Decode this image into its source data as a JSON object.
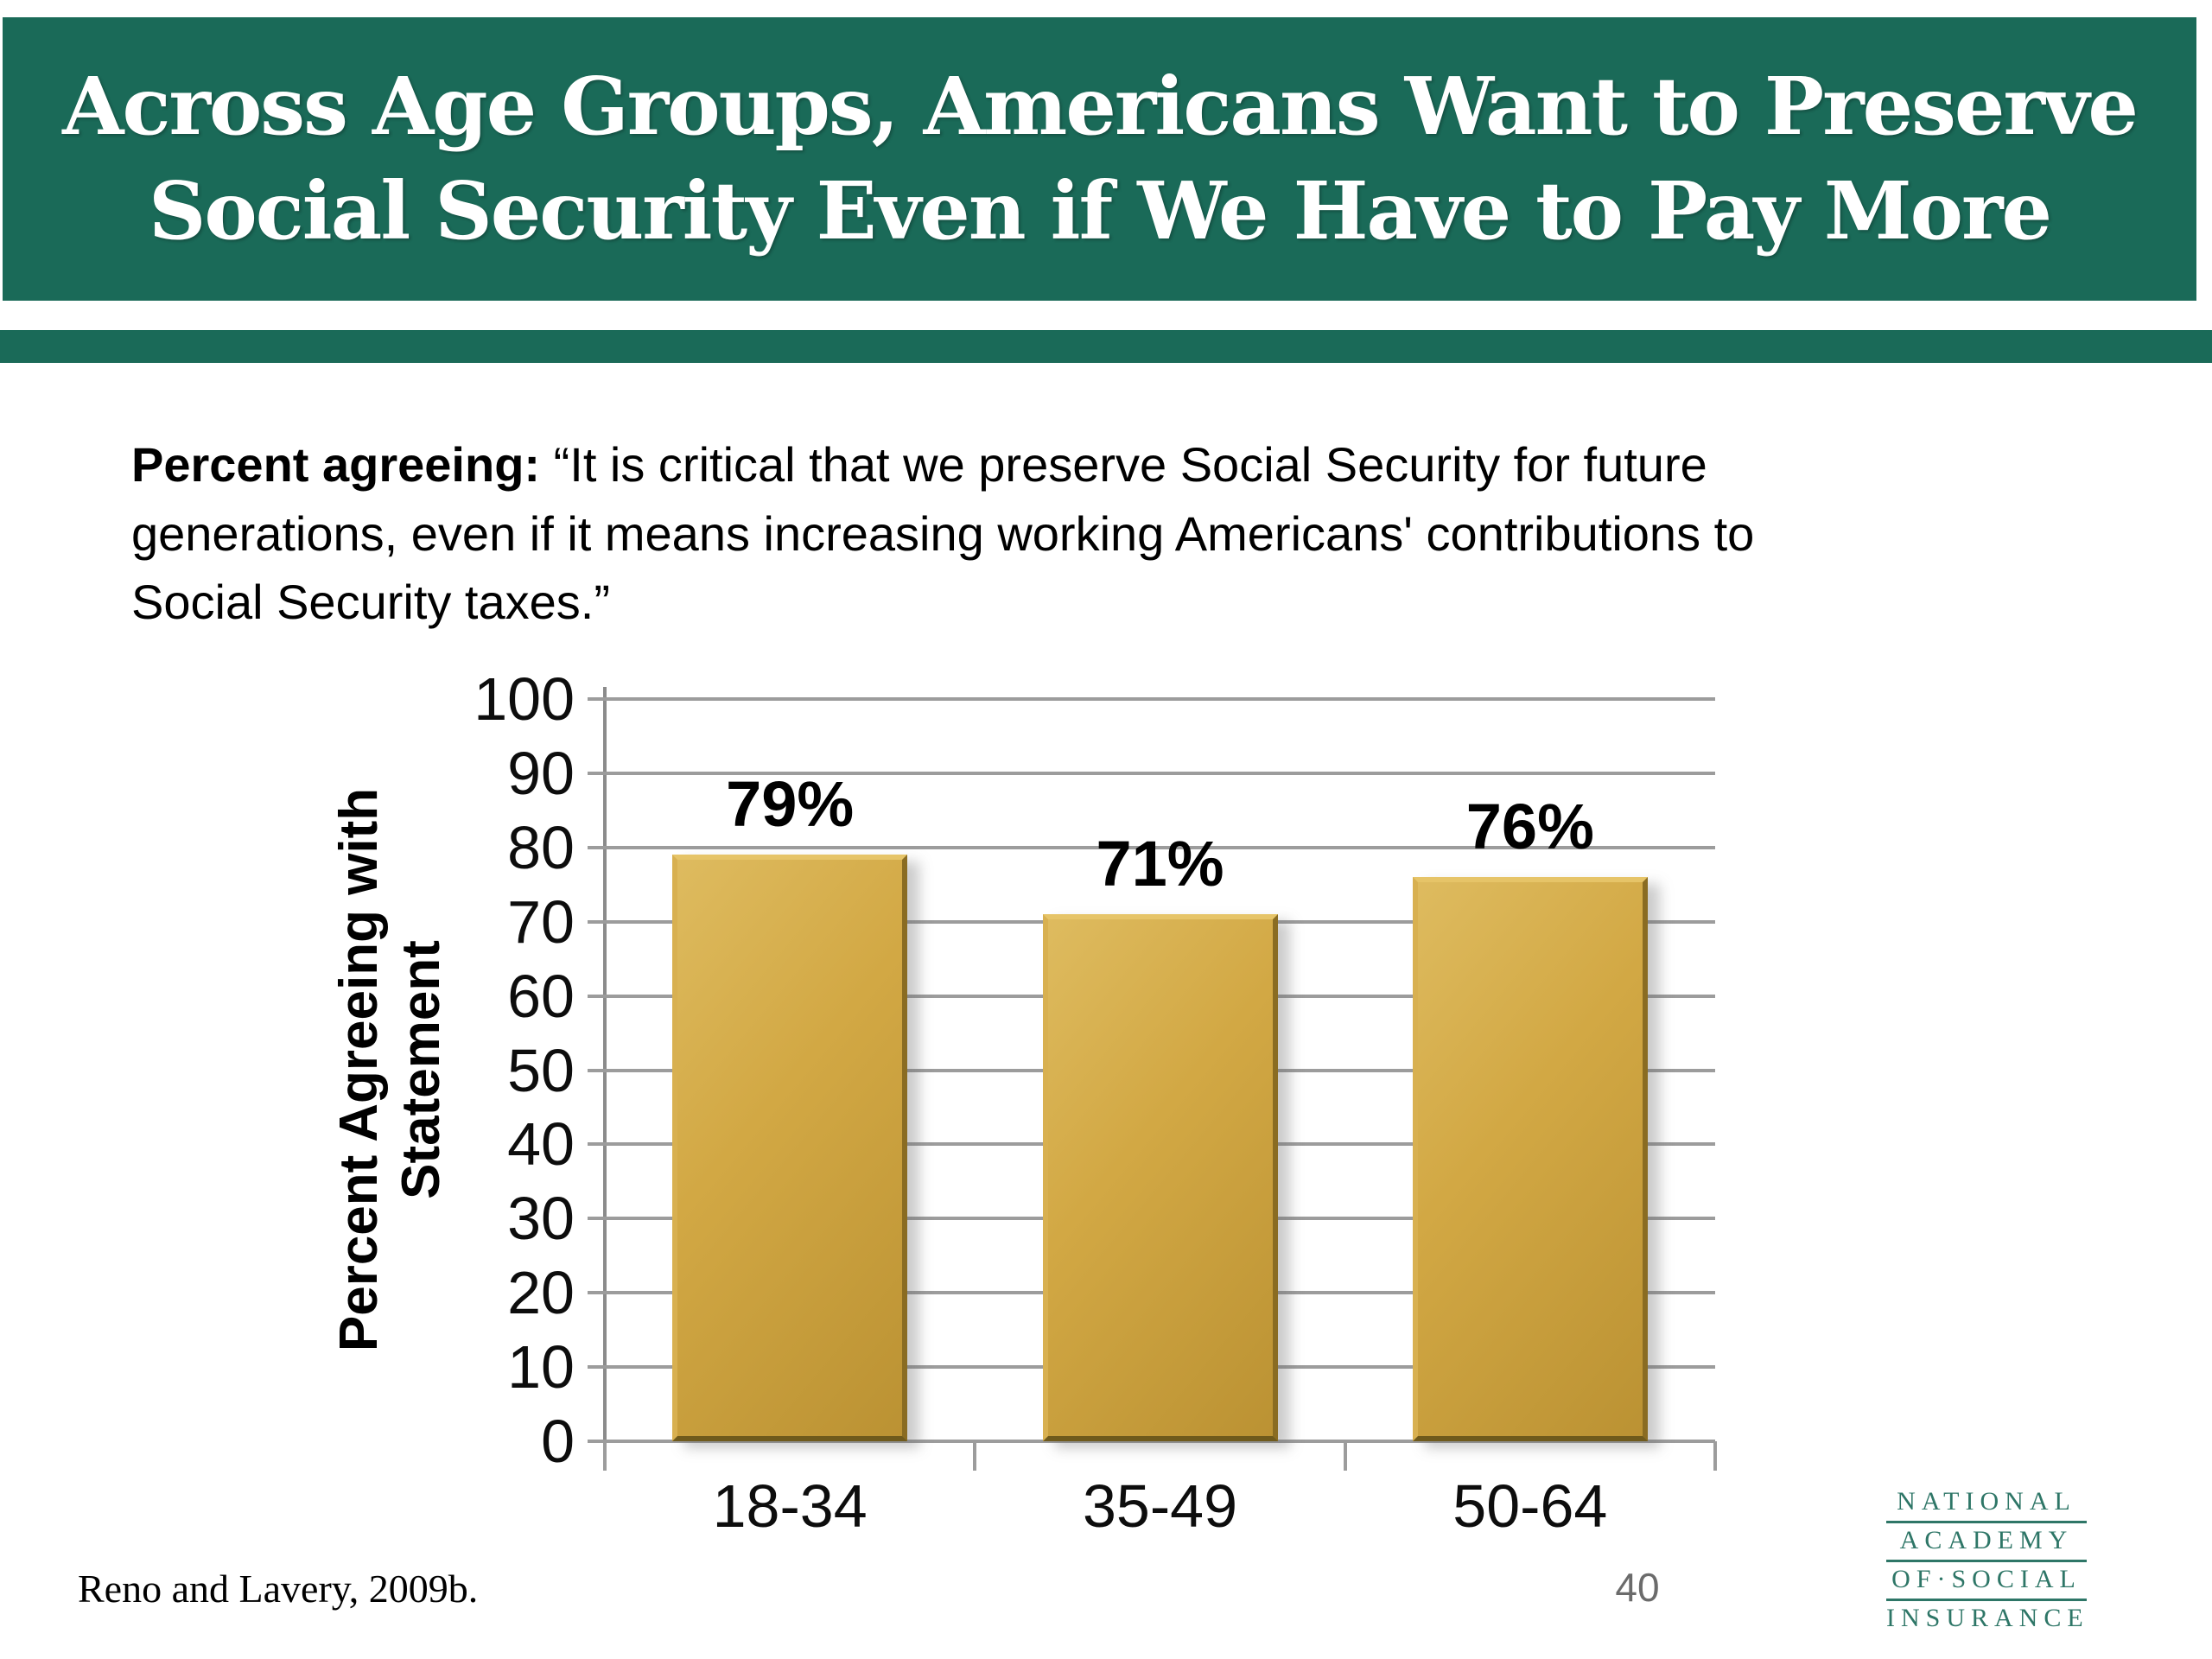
{
  "header": {
    "title_line1": "Across Age Groups, Americans Want to Preserve",
    "title_line2": "Social Security Even if We Have to Pay More",
    "band_color": "#1a6a58"
  },
  "statement": {
    "lead": "Percent agreeing:",
    "line1_rest": " “It is critical that we preserve Social Security for future",
    "line2": "generations, even if it means increasing working Americans' contributions to",
    "line3": "Social Security taxes.”"
  },
  "chart_data": {
    "type": "bar",
    "title": "",
    "categories": [
      "18-34",
      "35-49",
      "50-64"
    ],
    "values": [
      79,
      71,
      76
    ],
    "value_labels": [
      "79%",
      "71%",
      "76%"
    ],
    "xlabel": "",
    "ylabel": "Percent Agreeing with Statement",
    "ylabel_lines": [
      "Percent Agreeing with",
      "Statement"
    ],
    "ylim": [
      0,
      100
    ],
    "yticks": [
      0,
      10,
      20,
      30,
      40,
      50,
      60,
      70,
      80,
      90,
      100
    ],
    "grid": "horizontal",
    "legend": "none",
    "bar_color": "#cfa23c",
    "gridline_color": "#9c9c9c"
  },
  "footer": {
    "source": "Reno and Lavery, 2009b.",
    "page_number": "40",
    "logo_lines": [
      "NATIONAL",
      "ACADEMY",
      "OF·SOCIAL",
      "INSURANCE"
    ],
    "logo_color": "#2e7667"
  }
}
